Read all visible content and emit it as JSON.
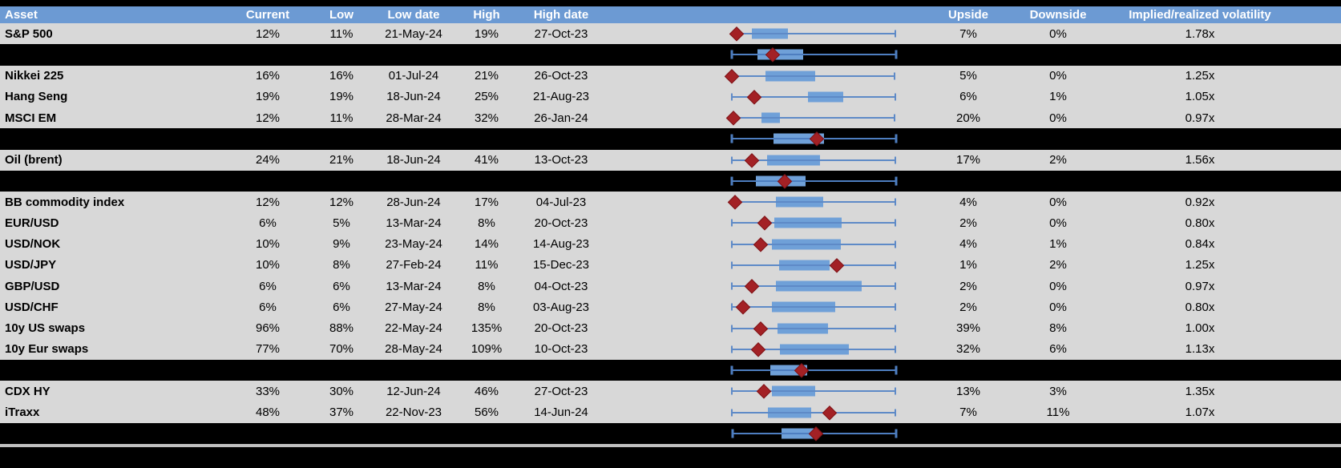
{
  "colors": {
    "header_bg": "#6C9AD3",
    "header_text": "#FFFFFF",
    "data_row_bg": "#D8D8D8",
    "separator_row_bg": "#000000",
    "box_fill": "#6FA0D8",
    "whisker_blue": "#5E8AC7",
    "whisker_blue_on_black": "#4E7EC0",
    "current_marker_red": "#A32125",
    "bottom_divider_gray": "#C0C0C0"
  },
  "chart_data": {
    "type": "table",
    "description_of_embedded_plots": "Each row shows a horizontal box-and-whisker range plot (normalized 0-1 across plot width, no axis labels shown) with a red diamond marking the current level; black separator rows carry aggregate box plots.",
    "legend_position": "none",
    "columns": [
      {
        "key": "asset",
        "label": "Asset"
      },
      {
        "key": "current",
        "label": "Current"
      },
      {
        "key": "low",
        "label": "Low"
      },
      {
        "key": "low_date",
        "label": "Low date"
      },
      {
        "key": "high",
        "label": "High"
      },
      {
        "key": "high_date",
        "label": "High date"
      },
      {
        "key": "range_plot",
        "label": ""
      },
      {
        "key": "upside",
        "label": "Upside"
      },
      {
        "key": "downside",
        "label": "Downside"
      },
      {
        "key": "implied_realized",
        "label": "Implied/realized volatility"
      }
    ],
    "rows": [
      {
        "type": "data",
        "asset": "S&P 500",
        "current": "12%",
        "low": "11%",
        "low_date": "21-May-24",
        "high": "19%",
        "high_date": "27-Oct-23",
        "upside": "7%",
        "downside": "0%",
        "implied_realized": "1.78x",
        "box": {
          "whisker_lo": 0.056,
          "q1": 0.155,
          "q3": 0.366,
          "whisker_hi": 0.995,
          "marker": 0.066
        }
      },
      {
        "type": "summary",
        "box": {
          "whisker_lo": 0.038,
          "q1": 0.188,
          "q3": 0.455,
          "whisker_hi": 1.0,
          "marker": 0.277
        }
      },
      {
        "type": "data",
        "asset": "Nikkei 225",
        "current": "16%",
        "low": "16%",
        "low_date": "01-Jul-24",
        "high": "21%",
        "high_date": "26-Oct-23",
        "upside": "5%",
        "downside": "0%",
        "implied_realized": "1.25x",
        "box": {
          "whisker_lo": 0.033,
          "q1": 0.235,
          "q3": 0.526,
          "whisker_hi": 0.99,
          "marker": 0.038
        }
      },
      {
        "type": "data",
        "asset": "Hang Seng",
        "current": "19%",
        "low": "19%",
        "low_date": "18-Jun-24",
        "high": "25%",
        "high_date": "21-Aug-23",
        "upside": "6%",
        "downside": "1%",
        "implied_realized": "1.05x",
        "box": {
          "whisker_lo": 0.038,
          "q1": 0.484,
          "q3": 0.69,
          "whisker_hi": 0.995,
          "marker": 0.169
        }
      },
      {
        "type": "data",
        "asset": "MSCI EM",
        "current": "12%",
        "low": "11%",
        "low_date": "28-Mar-24",
        "high": "32%",
        "high_date": "26-Jan-24",
        "upside": "20%",
        "downside": "0%",
        "implied_realized": "0.97x",
        "box": {
          "whisker_lo": 0.038,
          "q1": 0.211,
          "q3": 0.319,
          "whisker_hi": 0.99,
          "marker": 0.047
        }
      },
      {
        "type": "summary",
        "box": {
          "whisker_lo": 0.038,
          "q1": 0.282,
          "q3": 0.577,
          "whisker_hi": 1.0,
          "marker": 0.535
        }
      },
      {
        "type": "data",
        "asset": "Oil (brent)",
        "current": "24%",
        "low": "21%",
        "low_date": "18-Jun-24",
        "high": "41%",
        "high_date": "13-Oct-23",
        "upside": "17%",
        "downside": "2%",
        "implied_realized": "1.56x",
        "box": {
          "whisker_lo": 0.038,
          "q1": 0.244,
          "q3": 0.554,
          "whisker_hi": 0.995,
          "marker": 0.155
        }
      },
      {
        "type": "summary",
        "box": {
          "whisker_lo": 0.038,
          "q1": 0.178,
          "q3": 0.469,
          "whisker_hi": 1.0,
          "marker": 0.347
        }
      },
      {
        "type": "data",
        "asset": "BB commodity index",
        "current": "12%",
        "low": "12%",
        "low_date": "28-Jun-24",
        "high": "17%",
        "high_date": "04-Jul-23",
        "upside": "4%",
        "downside": "0%",
        "implied_realized": "0.92x",
        "box": {
          "whisker_lo": 0.047,
          "q1": 0.296,
          "q3": 0.573,
          "whisker_hi": 0.995,
          "marker": 0.056
        }
      },
      {
        "type": "data",
        "asset": "EUR/USD",
        "current": "6%",
        "low": "5%",
        "low_date": "13-Mar-24",
        "high": "8%",
        "high_date": "20-Oct-23",
        "upside": "2%",
        "downside": "0%",
        "implied_realized": "0.80x",
        "box": {
          "whisker_lo": 0.038,
          "q1": 0.286,
          "q3": 0.681,
          "whisker_hi": 0.995,
          "marker": 0.23
        }
      },
      {
        "type": "data",
        "asset": "USD/NOK",
        "current": "10%",
        "low": "9%",
        "low_date": "23-May-24",
        "high": "14%",
        "high_date": "14-Aug-23",
        "upside": "4%",
        "downside": "1%",
        "implied_realized": "0.84x",
        "box": {
          "whisker_lo": 0.038,
          "q1": 0.272,
          "q3": 0.676,
          "whisker_hi": 0.995,
          "marker": 0.207
        }
      },
      {
        "type": "data",
        "asset": "USD/JPY",
        "current": "10%",
        "low": "8%",
        "low_date": "27-Feb-24",
        "high": "11%",
        "high_date": "15-Dec-23",
        "upside": "1%",
        "downside": "2%",
        "implied_realized": "1.25x",
        "box": {
          "whisker_lo": 0.038,
          "q1": 0.315,
          "q3": 0.61,
          "whisker_hi": 0.995,
          "marker": 0.653
        }
      },
      {
        "type": "data",
        "asset": "GBP/USD",
        "current": "6%",
        "low": "6%",
        "low_date": "13-Mar-24",
        "high": "8%",
        "high_date": "04-Oct-23",
        "upside": "2%",
        "downside": "0%",
        "implied_realized": "0.97x",
        "box": {
          "whisker_lo": 0.038,
          "q1": 0.296,
          "q3": 0.798,
          "whisker_hi": 0.995,
          "marker": 0.155
        }
      },
      {
        "type": "data",
        "asset": "USD/CHF",
        "current": "6%",
        "low": "6%",
        "low_date": "27-May-24",
        "high": "8%",
        "high_date": "03-Aug-23",
        "upside": "2%",
        "downside": "0%",
        "implied_realized": "0.80x",
        "box": {
          "whisker_lo": 0.038,
          "q1": 0.272,
          "q3": 0.643,
          "whisker_hi": 0.995,
          "marker": 0.103
        }
      },
      {
        "type": "data",
        "asset": "10y US swaps",
        "current": "96%",
        "low": "88%",
        "low_date": "22-May-24",
        "high": "135%",
        "high_date": "20-Oct-23",
        "upside": "39%",
        "downside": "8%",
        "implied_realized": "1.00x",
        "box": {
          "whisker_lo": 0.038,
          "q1": 0.305,
          "q3": 0.601,
          "whisker_hi": 0.995,
          "marker": 0.207
        }
      },
      {
        "type": "data",
        "asset": "10y Eur swaps",
        "current": "77%",
        "low": "70%",
        "low_date": "28-May-24",
        "high": "109%",
        "high_date": "10-Oct-23",
        "upside": "32%",
        "downside": "6%",
        "implied_realized": "1.13x",
        "box": {
          "whisker_lo": 0.038,
          "q1": 0.319,
          "q3": 0.723,
          "whisker_hi": 0.995,
          "marker": 0.192
        }
      },
      {
        "type": "summary",
        "box": {
          "whisker_lo": 0.038,
          "q1": 0.263,
          "q3": 0.479,
          "whisker_hi": 1.0,
          "marker": 0.446
        }
      },
      {
        "type": "data",
        "asset": "CDX HY",
        "current": "33%",
        "low": "30%",
        "low_date": "12-Jun-24",
        "high": "46%",
        "high_date": "27-Oct-23",
        "upside": "13%",
        "downside": "3%",
        "implied_realized": "1.35x",
        "box": {
          "whisker_lo": 0.038,
          "q1": 0.272,
          "q3": 0.526,
          "whisker_hi": 0.995,
          "marker": 0.225
        }
      },
      {
        "type": "data",
        "asset": "iTraxx",
        "current": "48%",
        "low": "37%",
        "low_date": "22-Nov-23",
        "high": "56%",
        "high_date": "14-Jun-24",
        "upside": "7%",
        "downside": "11%",
        "implied_realized": "1.07x",
        "box": {
          "whisker_lo": 0.038,
          "q1": 0.249,
          "q3": 0.502,
          "whisker_hi": 0.995,
          "marker": 0.61
        }
      },
      {
        "type": "summary",
        "box": {
          "whisker_lo": 0.042,
          "q1": 0.329,
          "q3": 0.516,
          "whisker_hi": 1.0,
          "marker": 0.531
        }
      }
    ]
  }
}
